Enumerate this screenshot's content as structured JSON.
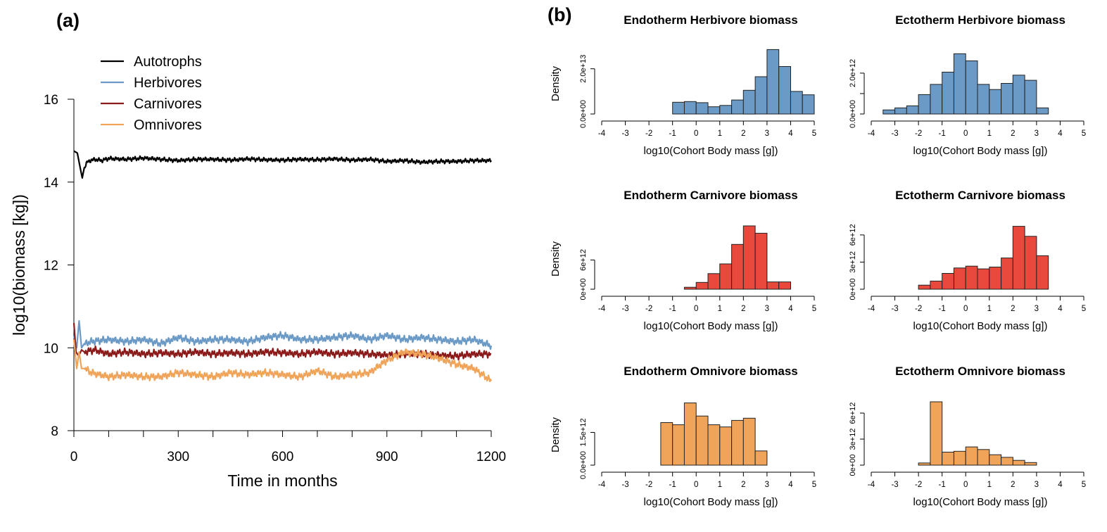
{
  "panels": {
    "a_label": "(a)",
    "b_label": "(b)"
  },
  "chart_data": [
    {
      "id": "timeseries",
      "type": "line",
      "xlabel": "Time in months",
      "ylabel": "log10(biomass [kg])",
      "xlim": [
        0,
        1200
      ],
      "ylim": [
        8,
        16
      ],
      "xticks": [
        0,
        300,
        600,
        900,
        1200
      ],
      "xtick_labels": [
        "0",
        "300",
        "600",
        "900",
        "1200"
      ],
      "xminor_ticks": [
        100,
        200,
        400,
        500,
        700,
        800,
        1000,
        1100
      ],
      "yticks": [
        8,
        10,
        12,
        14,
        16
      ],
      "ytick_labels": [
        "8",
        "10",
        "12",
        "14",
        "16"
      ],
      "legend_position": "top-left",
      "grid": false,
      "series": [
        {
          "name": "Autotrophs",
          "color": "#000000",
          "x": [
            0,
            10,
            18,
            24,
            30,
            40,
            60,
            80,
            100,
            150,
            200,
            250,
            300,
            350,
            400,
            450,
            500,
            550,
            600,
            650,
            700,
            750,
            800,
            850,
            900,
            950,
            1000,
            1050,
            1100,
            1150,
            1200
          ],
          "y": [
            14.75,
            14.7,
            14.35,
            14.1,
            14.35,
            14.5,
            14.55,
            14.52,
            14.57,
            14.55,
            14.58,
            14.55,
            14.52,
            14.55,
            14.55,
            14.53,
            14.56,
            14.54,
            14.53,
            14.55,
            14.54,
            14.56,
            14.53,
            14.55,
            14.5,
            14.52,
            14.48,
            14.5,
            14.5,
            14.52,
            14.52
          ]
        },
        {
          "name": "Herbivores",
          "color": "#6b9ac6",
          "x": [
            0,
            8,
            15,
            22,
            30,
            50,
            100,
            150,
            200,
            250,
            300,
            350,
            400,
            450,
            500,
            550,
            600,
            650,
            700,
            750,
            800,
            850,
            900,
            950,
            1000,
            1050,
            1100,
            1150,
            1200
          ],
          "y": [
            10.3,
            10.0,
            10.65,
            10.0,
            10.1,
            10.15,
            10.2,
            10.15,
            10.2,
            10.1,
            10.25,
            10.15,
            10.2,
            10.2,
            10.15,
            10.25,
            10.3,
            10.2,
            10.2,
            10.25,
            10.3,
            10.2,
            10.3,
            10.2,
            10.25,
            10.2,
            10.15,
            10.2,
            10.05
          ]
        },
        {
          "name": "Carnivores",
          "color": "#8b1a1a",
          "x": [
            0,
            6,
            14,
            22,
            30,
            60,
            100,
            150,
            200,
            250,
            300,
            350,
            400,
            450,
            500,
            550,
            600,
            650,
            700,
            750,
            800,
            850,
            900,
            950,
            1000,
            1050,
            1100,
            1150,
            1200
          ],
          "y": [
            10.6,
            9.9,
            9.8,
            9.95,
            9.9,
            9.95,
            9.85,
            9.9,
            9.85,
            9.88,
            9.85,
            9.9,
            9.85,
            9.88,
            9.85,
            9.9,
            9.88,
            9.85,
            9.9,
            9.85,
            9.88,
            9.85,
            9.82,
            9.85,
            9.85,
            9.82,
            9.8,
            9.85,
            9.85
          ]
        },
        {
          "name": "Omnivores",
          "color": "#f0a45a",
          "x": [
            0,
            8,
            15,
            22,
            30,
            50,
            100,
            150,
            200,
            250,
            300,
            350,
            400,
            450,
            500,
            550,
            600,
            650,
            700,
            750,
            800,
            850,
            900,
            950,
            1000,
            1050,
            1100,
            1150,
            1200
          ],
          "y": [
            10.2,
            9.5,
            9.9,
            9.5,
            9.5,
            9.4,
            9.3,
            9.35,
            9.3,
            9.3,
            9.4,
            9.35,
            9.3,
            9.4,
            9.35,
            9.4,
            9.35,
            9.3,
            9.45,
            9.3,
            9.35,
            9.4,
            9.7,
            9.9,
            9.85,
            9.75,
            9.6,
            9.5,
            9.2
          ]
        }
      ]
    },
    {
      "id": "hist-endo-herb",
      "type": "bar",
      "title": "Endotherm Herbivore biomass",
      "xlabel": "log10(Cohort Body mass [g])",
      "ylabel": "Density",
      "color": "#6b9ac6",
      "xlim": [
        -4,
        5
      ],
      "xticks": [
        "-4",
        "-3",
        "-2",
        "-1",
        "0",
        "1",
        "2",
        "3",
        "4",
        "5"
      ],
      "yticks": [
        0,
        20000000000000.0
      ],
      "ytick_labels": [
        "0.0e+00",
        "2.0e+13"
      ],
      "ylim": [
        0,
        28000000000000.0
      ],
      "bin_width": 0.5,
      "bin_start": -4,
      "values": [
        0,
        0,
        0,
        0,
        0,
        0,
        5200000000000.0,
        5500000000000.0,
        5000000000000.0,
        3200000000000.0,
        3800000000000.0,
        6200000000000.0,
        10500000000000.0,
        16500000000000.0,
        28500000000000.0,
        21000000000000.0,
        10000000000000.0,
        8500000000000.0
      ]
    },
    {
      "id": "hist-ecto-herb",
      "type": "bar",
      "title": "Ectotherm Herbivore biomass",
      "xlabel": "log10(Cohort Body mass [g])",
      "ylabel": "",
      "color": "#6b9ac6",
      "xlim": [
        -4,
        5
      ],
      "xticks": [
        "-4",
        "-3",
        "-2",
        "-1",
        "0",
        "1",
        "2",
        "3",
        "4",
        "5"
      ],
      "yticks": [
        0,
        1000000000000.0,
        2000000000000.0
      ],
      "ytick_labels": [
        "0.0e+00",
        "",
        "2.0e+12"
      ],
      "ylim": [
        0,
        3100000000000.0
      ],
      "bin_width": 0.5,
      "bin_start": -4,
      "values": [
        0,
        200000000000.0,
        300000000000.0,
        400000000000.0,
        950000000000.0,
        1450000000000.0,
        2050000000000.0,
        2950000000000.0,
        2600000000000.0,
        1450000000000.0,
        1200000000000.0,
        1500000000000.0,
        1900000000000.0,
        1650000000000.0,
        300000000000.0,
        0,
        0,
        0
      ]
    },
    {
      "id": "hist-endo-carn",
      "type": "bar",
      "title": "Endotherm Carnivore biomass",
      "xlabel": "log10(Cohort Body mass [g])",
      "ylabel": "Density",
      "color": "#e8493c",
      "xlim": [
        -4,
        5
      ],
      "xticks": [
        "-4",
        "-3",
        "-2",
        "-1",
        "0",
        "1",
        "2",
        "3",
        "4",
        "5"
      ],
      "yticks": [
        0,
        6000000000000.0
      ],
      "ytick_labels": [
        "0e+00",
        "6e+12"
      ],
      "ylim": [
        0,
        13000000000000.0
      ],
      "bin_width": 0.5,
      "bin_start": -4,
      "values": [
        0,
        0,
        0,
        0,
        0,
        0,
        0,
        400000000000.0,
        1400000000000.0,
        3200000000000.0,
        5200000000000.0,
        9200000000000.0,
        13000000000000.0,
        11500000000000.0,
        1500000000000.0,
        1500000000000.0,
        0,
        0
      ]
    },
    {
      "id": "hist-ecto-carn",
      "type": "bar",
      "title": "Ectotherm Carnivore biomass",
      "xlabel": "log10(Cohort Body mass [g])",
      "ylabel": "",
      "color": "#e8493c",
      "xlim": [
        -4,
        5
      ],
      "xticks": [
        "-4",
        "-3",
        "-2",
        "-1",
        "0",
        "1",
        "2",
        "3",
        "4",
        "5"
      ],
      "yticks": [
        0,
        3000000000000.0,
        6000000000000.0
      ],
      "ytick_labels": [
        "0e+00",
        "3e+12",
        "6e+12"
      ],
      "ylim": [
        0,
        7000000000000.0
      ],
      "bin_width": 0.5,
      "bin_start": -4,
      "values": [
        0,
        0,
        0,
        0,
        450000000000.0,
        900000000000.0,
        1750000000000.0,
        2350000000000.0,
        2550000000000.0,
        2250000000000.0,
        2450000000000.0,
        3450000000000.0,
        6950000000000.0,
        5850000000000.0,
        3700000000000.0,
        0,
        0,
        0
      ]
    },
    {
      "id": "hist-endo-omni",
      "type": "bar",
      "title": "Endotherm Omnivore biomass",
      "xlabel": "log10(Cohort Body mass [g])",
      "ylabel": "Density",
      "color": "#f0a45a",
      "xlim": [
        -4,
        5
      ],
      "xticks": [
        "-4",
        "-3",
        "-2",
        "-1",
        "0",
        "1",
        "2",
        "3",
        "4",
        "5"
      ],
      "yticks": [
        0,
        1500000000000.0
      ],
      "ytick_labels": [
        "0.0e+00",
        "1.5e+12"
      ],
      "ylim": [
        0,
        2900000000000.0
      ],
      "bin_width": 0.5,
      "bin_start": -4,
      "values": [
        0,
        0,
        0,
        0,
        0,
        1950000000000.0,
        1850000000000.0,
        2850000000000.0,
        2250000000000.0,
        1850000000000.0,
        1750000000000.0,
        2050000000000.0,
        2150000000000.0,
        650000000000.0,
        0,
        0,
        0,
        0
      ]
    },
    {
      "id": "hist-ecto-omni",
      "type": "bar",
      "title": "Ectotherm Omnivore biomass",
      "xlabel": "log10(Cohort Body mass [g])",
      "ylabel": "",
      "color": "#f0a45a",
      "xlim": [
        -4,
        5
      ],
      "xticks": [
        "-4",
        "-3",
        "-2",
        "-1",
        "0",
        "1",
        "2",
        "3",
        "4",
        "5"
      ],
      "yticks": [
        0,
        3000000000000.0,
        6000000000000.0
      ],
      "ytick_labels": [
        "0e+00",
        "3e+12",
        "6e+12"
      ],
      "ylim": [
        0,
        7300000000000.0
      ],
      "bin_width": 0.5,
      "bin_start": -4,
      "values": [
        0,
        0,
        0,
        0,
        250000000000.0,
        7300000000000.0,
        1500000000000.0,
        1600000000000.0,
        2100000000000.0,
        1800000000000.0,
        1200000000000.0,
        900000000000.0,
        550000000000.0,
        300000000000.0,
        0,
        0,
        0,
        0
      ]
    }
  ]
}
